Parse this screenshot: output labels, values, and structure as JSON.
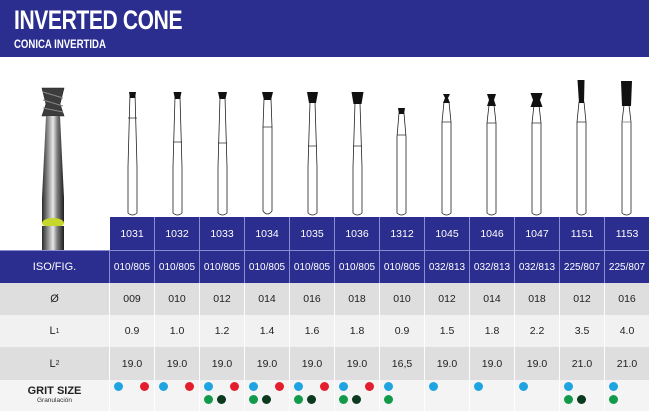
{
  "header": {
    "title": "INVERTED CONE",
    "subtitle": "CONICA INVERTIDA",
    "bg_color": "#2b2e8f"
  },
  "table": {
    "row_labels": {
      "iso": "ISO/FIG.",
      "diameter": "Ø",
      "l1": "L",
      "l1_sub": "1",
      "l2": "L",
      "l2_sub": "2",
      "grit_title": "GRIT SIZE",
      "grit_subtitle": "Granulación"
    },
    "columns": [
      {
        "code": "1031",
        "iso": "010/805",
        "diameter": "009",
        "l1": "0.9",
        "l2": "19.0",
        "grit": [
          "blue",
          "red"
        ]
      },
      {
        "code": "1032",
        "iso": "010/805",
        "diameter": "010",
        "l1": "1.0",
        "l2": "19.0",
        "grit": [
          "blue",
          "red"
        ]
      },
      {
        "code": "1033",
        "iso": "010/805",
        "diameter": "012",
        "l1": "1.2",
        "l2": "19.0",
        "grit": [
          "blue",
          "red",
          "green",
          "dark"
        ]
      },
      {
        "code": "1034",
        "iso": "010/805",
        "diameter": "014",
        "l1": "1.4",
        "l2": "19.0",
        "grit": [
          "blue",
          "red",
          "green",
          "dark"
        ]
      },
      {
        "code": "1035",
        "iso": "010/805",
        "diameter": "016",
        "l1": "1.6",
        "l2": "19.0",
        "grit": [
          "blue",
          "red",
          "green",
          "dark"
        ]
      },
      {
        "code": "1036",
        "iso": "010/805",
        "diameter": "018",
        "l1": "1.8",
        "l2": "19.0",
        "grit": [
          "blue",
          "red",
          "green",
          "dark"
        ]
      },
      {
        "code": "1312",
        "iso": "010/805",
        "diameter": "010",
        "l1": "0.9",
        "l2": "16,5",
        "grit": [
          "blue",
          "green"
        ]
      },
      {
        "code": "1045",
        "iso": "032/813",
        "diameter": "012",
        "l1": "1.5",
        "l2": "19.0",
        "grit": [
          "blue"
        ]
      },
      {
        "code": "1046",
        "iso": "032/813",
        "diameter": "014",
        "l1": "1.8",
        "l2": "19.0",
        "grit": [
          "blue"
        ]
      },
      {
        "code": "1047",
        "iso": "032/813",
        "diameter": "018",
        "l1": "2.2",
        "l2": "19.0",
        "grit": [
          "blue"
        ]
      },
      {
        "code": "1151",
        "iso": "225/807",
        "diameter": "012",
        "l1": "3.5",
        "l2": "21.0",
        "grit": [
          "blue",
          "green",
          "dark"
        ]
      },
      {
        "code": "1153",
        "iso": "225/807",
        "diameter": "016",
        "l1": "4.0",
        "l2": "21.0",
        "grit": [
          "blue",
          "green"
        ]
      }
    ]
  },
  "grit_colors": {
    "blue": "#1ea4e0",
    "red": "#e31e2e",
    "green": "#119a4a",
    "dark": "#0c3a1e"
  },
  "icons": {
    "product_photo": "dental-bur-photo",
    "bur_drawing": "bur-outline-icon"
  }
}
